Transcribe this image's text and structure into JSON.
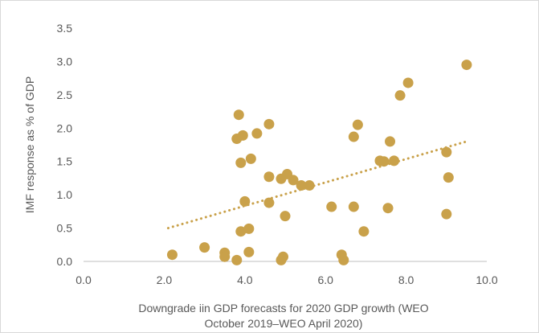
{
  "chart_data": {
    "type": "scatter",
    "title": "",
    "xlabel": "Downgrade iin GDP forecasts for 2020 GDP growth (WEO October 2019–WEO April 2020)",
    "xlabel_lines": [
      "Downgrade iin GDP forecasts for 2020 GDP growth (WEO",
      "October 2019–WEO April 2020)"
    ],
    "ylabel": "IMF response as % of GDP",
    "xlim": [
      0,
      10
    ],
    "ylim": [
      0,
      3.5
    ],
    "xticks": [
      "0.0",
      "2.0",
      "4.0",
      "6.0",
      "8.0",
      "10.0"
    ],
    "yticks": [
      "0.0",
      "0.5",
      "1.0",
      "1.5",
      "2.0",
      "2.5",
      "3.0",
      "3.5"
    ],
    "grid": false,
    "legend": "none",
    "colors": {
      "points": "#C9A14A",
      "trendline": "#C9A14A",
      "axis": "#bfbfbf",
      "text": "#595959"
    },
    "series": [
      {
        "points": [
          [
            2.2,
            0.1
          ],
          [
            3.0,
            0.21
          ],
          [
            3.5,
            0.13
          ],
          [
            3.5,
            0.07
          ],
          [
            3.8,
            0.02
          ],
          [
            3.8,
            1.84
          ],
          [
            3.85,
            2.2
          ],
          [
            3.9,
            0.45
          ],
          [
            3.9,
            1.48
          ],
          [
            3.95,
            1.89
          ],
          [
            4.0,
            0.9
          ],
          [
            4.1,
            0.49
          ],
          [
            4.1,
            0.14
          ],
          [
            4.15,
            1.54
          ],
          [
            4.3,
            1.92
          ],
          [
            4.6,
            2.06
          ],
          [
            4.6,
            1.27
          ],
          [
            4.6,
            0.88
          ],
          [
            4.9,
            1.24
          ],
          [
            4.9,
            0.02
          ],
          [
            4.95,
            0.07
          ],
          [
            5.0,
            0.68
          ],
          [
            5.05,
            1.31
          ],
          [
            5.2,
            1.22
          ],
          [
            5.4,
            1.14
          ],
          [
            5.6,
            1.14
          ],
          [
            6.15,
            0.82
          ],
          [
            6.4,
            0.1
          ],
          [
            6.45,
            0.02
          ],
          [
            6.7,
            0.82
          ],
          [
            6.7,
            1.87
          ],
          [
            6.8,
            2.05
          ],
          [
            6.95,
            0.45
          ],
          [
            7.35,
            1.51
          ],
          [
            7.45,
            1.5
          ],
          [
            7.55,
            0.8
          ],
          [
            7.6,
            1.8
          ],
          [
            7.7,
            1.51
          ],
          [
            7.85,
            2.49
          ],
          [
            8.05,
            2.68
          ],
          [
            9.0,
            1.64
          ],
          [
            9.05,
            1.26
          ],
          [
            9.0,
            0.71
          ],
          [
            9.5,
            2.95
          ]
        ]
      }
    ],
    "trendline": {
      "style": "dotted",
      "x": [
        2.1,
        9.5
      ],
      "y": [
        0.5,
        1.8
      ]
    }
  }
}
